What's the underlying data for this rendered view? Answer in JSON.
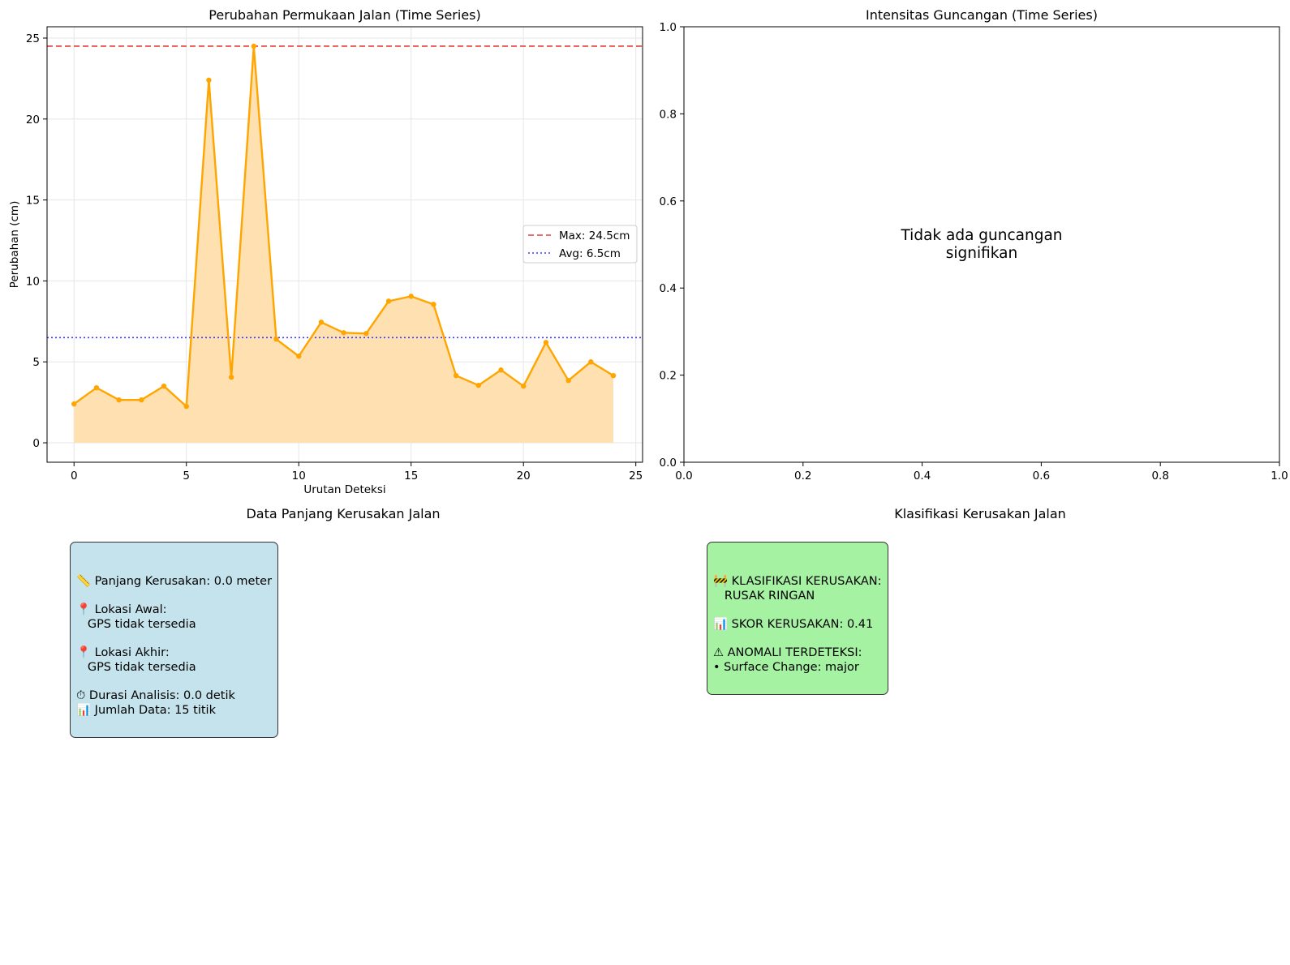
{
  "chart_data": [
    {
      "type": "area",
      "title": "Perubahan Permukaan Jalan (Time Series)",
      "xlabel": "Urutan Deteksi",
      "ylabel": "Perubahan (cm)",
      "xlim": [
        -1.2,
        25.3
      ],
      "ylim": [
        -1.2,
        25.7
      ],
      "xticks": [
        0,
        5,
        10,
        15,
        20,
        25
      ],
      "yticks": [
        0,
        5,
        10,
        15,
        20,
        25
      ],
      "grid": true,
      "legend_placement": "center-right",
      "x": [
        0,
        1,
        2,
        3,
        4,
        5,
        6,
        7,
        8,
        9,
        10,
        11,
        12,
        13,
        14,
        15,
        16,
        17,
        18,
        19,
        20,
        21,
        22,
        23,
        24
      ],
      "series": [
        {
          "values": [
            2.4,
            3.4,
            2.65,
            2.65,
            3.5,
            2.25,
            22.4,
            4.05,
            24.5,
            6.4,
            5.35,
            7.45,
            6.8,
            6.75,
            8.75,
            9.05,
            8.55,
            4.15,
            3.55,
            4.5,
            3.5,
            6.2,
            3.85,
            5.0,
            4.15
          ],
          "color": "#ffa500",
          "fill": "#ffe0b0"
        }
      ],
      "reference_lines": [
        {
          "label": "Max: 24.5cm",
          "value": 24.5,
          "color": "#e83a3a",
          "style": "dashed"
        },
        {
          "label": "Avg: 6.5cm",
          "value": 6.5,
          "color": "#3b3bff",
          "style": "dotted"
        }
      ]
    },
    {
      "type": "line",
      "title": "Intensitas Guncangan (Time Series)",
      "xlim": [
        0,
        1
      ],
      "ylim": [
        0,
        1
      ],
      "xticks": [
        "0.0",
        "0.2",
        "0.4",
        "0.6",
        "0.8",
        "1.0"
      ],
      "yticks": [
        "0.0",
        "0.2",
        "0.4",
        "0.6",
        "0.8",
        "1.0"
      ],
      "grid": false,
      "series": [],
      "annotation": [
        "Tidak ada guncangan",
        "signifikan"
      ]
    }
  ],
  "panjang_section": {
    "title": "Data Panjang Kerusakan Jalan",
    "lines": [
      "📏 Panjang Kerusakan: 0.0 meter",
      "",
      "📍 Lokasi Awal:",
      "   GPS tidak tersedia",
      "",
      "📍 Lokasi Akhir:",
      "   GPS tidak tersedia",
      "",
      "⏱ Durasi Analisis: 0.0 detik",
      "📊 Jumlah Data: 15 titik"
    ]
  },
  "klasifikasi_section": {
    "title": "Klasifikasi Kerusakan Jalan",
    "lines": [
      "🚧 KLASIFIKASI KERUSAKAN:",
      "   RUSAK RINGAN",
      "",
      "📊 SKOR KERUSAKAN: 0.41",
      "",
      "⚠ ANOMALI TERDETEKSI:",
      "• Surface Change: major"
    ]
  }
}
